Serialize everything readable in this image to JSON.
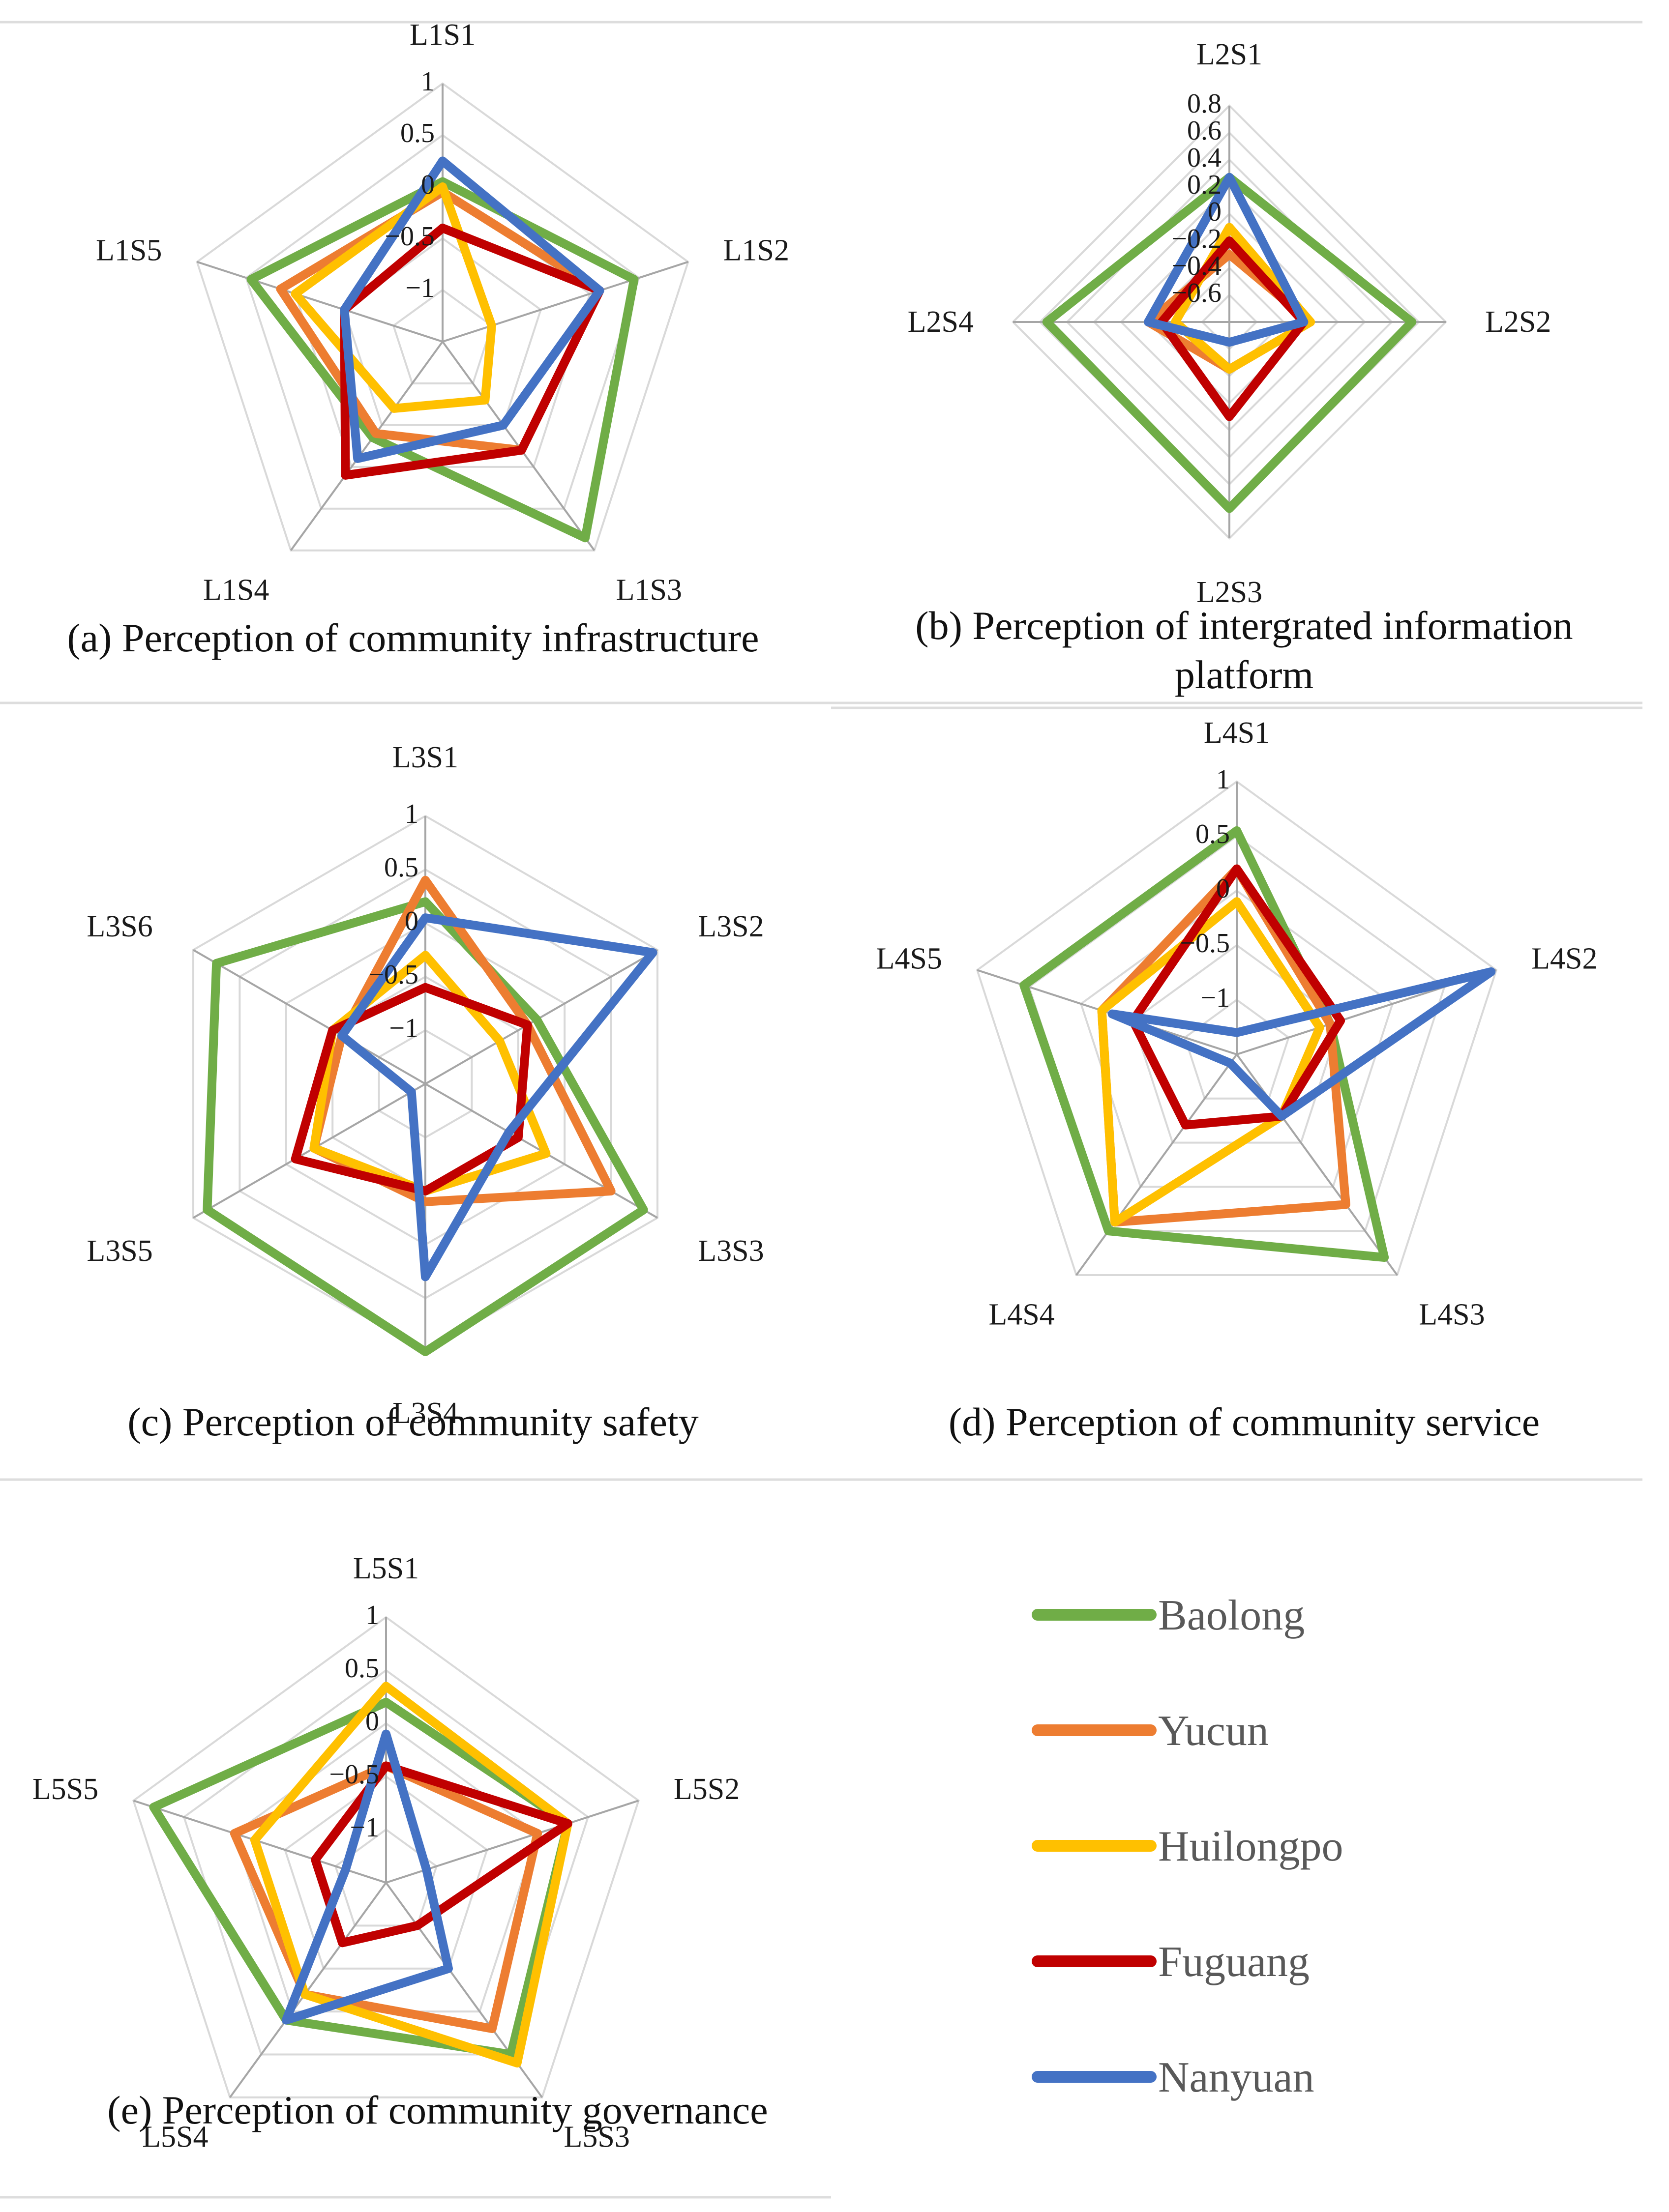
{
  "legend": [
    {
      "name": "Baolong",
      "color": "#70ad47"
    },
    {
      "name": "Yucun",
      "color": "#ed7d31"
    },
    {
      "name": "Huilongpo",
      "color": "#ffc000"
    },
    {
      "name": "Fuguang",
      "color": "#c00000"
    },
    {
      "name": "Nanyuan",
      "color": "#4472c4"
    }
  ],
  "chart_data": [
    {
      "type": "radar",
      "title": "(a) Perception of community infrastructure",
      "axes": [
        "L1S1",
        "L1S2",
        "L1S3",
        "L1S4",
        "L1S5"
      ],
      "rmin": -1.5,
      "rmax": 1,
      "ticks": [
        1,
        0.5,
        0,
        -0.5,
        -1
      ],
      "tick_labels": [
        "1",
        "0.5",
        "0",
        "−0.5",
        "−1"
      ],
      "series": [
        {
          "name": "Baolong",
          "values": [
            0.05,
            0.45,
            0.85,
            -0.35,
            0.45
          ]
        },
        {
          "name": "Yucun",
          "values": [
            -0.05,
            0.1,
            -0.2,
            -0.4,
            0.15
          ]
        },
        {
          "name": "Huilongpo",
          "values": [
            0,
            -1,
            -0.8,
            -0.7,
            0
          ]
        },
        {
          "name": "Fuguang",
          "values": [
            -0.4,
            0.1,
            -0.2,
            0.1,
            -0.5
          ]
        },
        {
          "name": "Nanyuan",
          "values": [
            0.25,
            0.1,
            -0.5,
            -0.1,
            -0.5
          ]
        }
      ]
    },
    {
      "type": "radar",
      "title": "(b) Perception of intergrated information platform",
      "axes": [
        "L2S1",
        "L2S2",
        "L2S3",
        "L2S4"
      ],
      "rmin": -0.8,
      "rmax": 0.8,
      "ticks": [
        0.8,
        0.6,
        0.4,
        0.2,
        0,
        -0.2,
        -0.4,
        -0.6
      ],
      "tick_labels": [
        "0.8",
        "0.6",
        "0.4",
        "0.2",
        "0",
        "−0.2",
        "−0.4",
        "−0.6"
      ],
      "series": [
        {
          "name": "Baolong",
          "values": [
            0.27,
            0.55,
            0.58,
            0.55
          ]
        },
        {
          "name": "Yucun",
          "values": [
            -0.3,
            -0.2,
            -0.45,
            -0.2
          ]
        },
        {
          "name": "Huilongpo",
          "values": [
            -0.1,
            -0.2,
            -0.45,
            -0.4
          ]
        },
        {
          "name": "Fuguang",
          "values": [
            -0.2,
            -0.25,
            -0.1,
            -0.3
          ]
        },
        {
          "name": "Nanyuan",
          "values": [
            0.27,
            -0.25,
            -0.65,
            -0.2
          ]
        }
      ]
    },
    {
      "type": "radar",
      "title": "(c) Perception of community safety",
      "axes": [
        "L3S1",
        "L3S2",
        "L3S3",
        "L3S4",
        "L3S5",
        "L3S6"
      ],
      "rmin": -1.5,
      "rmax": 1,
      "ticks": [
        1,
        0.5,
        0,
        -0.5,
        -1
      ],
      "tick_labels": [
        "1",
        "0.5",
        "0",
        "−0.5",
        "−1"
      ],
      "series": [
        {
          "name": "Baolong",
          "values": [
            0.2,
            -0.3,
            0.85,
            1,
            0.85,
            0.75
          ]
        },
        {
          "name": "Yucun",
          "values": [
            0.4,
            -0.4,
            0.5,
            -0.4,
            -0.3,
            -0.6
          ]
        },
        {
          "name": "Huilongpo",
          "values": [
            -0.3,
            -0.7,
            -0.2,
            -0.5,
            -0.3,
            -0.5
          ]
        },
        {
          "name": "Fuguang",
          "values": [
            -0.6,
            -0.4,
            -0.5,
            -0.5,
            -0.1,
            -0.5
          ]
        },
        {
          "name": "Nanyuan",
          "values": [
            0.05,
            0.95,
            -0.6,
            0.3,
            -1.35,
            -0.6
          ]
        }
      ]
    },
    {
      "type": "radar",
      "title": "(d) Perception of community service",
      "axes": [
        "L4S1",
        "L4S2",
        "L4S3",
        "L4S4",
        "L4S5"
      ],
      "rmin": -1.5,
      "rmax": 1,
      "ticks": [
        1,
        0.5,
        0,
        -0.5,
        -1
      ],
      "tick_labels": [
        "1",
        "0.5",
        "0",
        "−0.5",
        "−1"
      ],
      "series": [
        {
          "name": "Baolong",
          "values": [
            0.55,
            -0.6,
            0.8,
            0.5,
            0.55
          ]
        },
        {
          "name": "Yucun",
          "values": [
            0.2,
            -0.6,
            0.2,
            0.4,
            -0.2
          ]
        },
        {
          "name": "Huilongpo",
          "values": [
            -0.1,
            -0.7,
            -0.8,
            0.4,
            -0.2
          ]
        },
        {
          "name": "Fuguang",
          "values": [
            0.2,
            -0.5,
            -0.8,
            -0.7,
            -0.5
          ]
        },
        {
          "name": "Nanyuan",
          "values": [
            -1.3,
            0.95,
            -0.8,
            -1.4,
            -0.3
          ]
        }
      ]
    },
    {
      "type": "radar",
      "title": "(e) Perception of community governance",
      "axes": [
        "L5S1",
        "L5S2",
        "L5S3",
        "L5S4",
        "L5S5"
      ],
      "rmin": -1.5,
      "rmax": 1,
      "ticks": [
        1,
        0.5,
        0,
        -0.5,
        -1
      ],
      "tick_labels": [
        "1",
        "0.5",
        "0",
        "−0.5",
        "−1"
      ],
      "series": [
        {
          "name": "Baolong",
          "values": [
            0.2,
            0.3,
            0.5,
            0.1,
            0.8
          ]
        },
        {
          "name": "Yucun",
          "values": [
            -0.4,
            0,
            0.2,
            -0.2,
            0
          ]
        },
        {
          "name": "Huilongpo",
          "values": [
            0.35,
            0.3,
            0.6,
            -0.2,
            -0.2
          ]
        },
        {
          "name": "Fuguang",
          "values": [
            -0.4,
            0.3,
            -1,
            -0.8,
            -0.8
          ]
        },
        {
          "name": "Nanyuan",
          "values": [
            -0.1,
            -1.1,
            -0.5,
            0.1,
            -1.1
          ]
        }
      ]
    }
  ]
}
